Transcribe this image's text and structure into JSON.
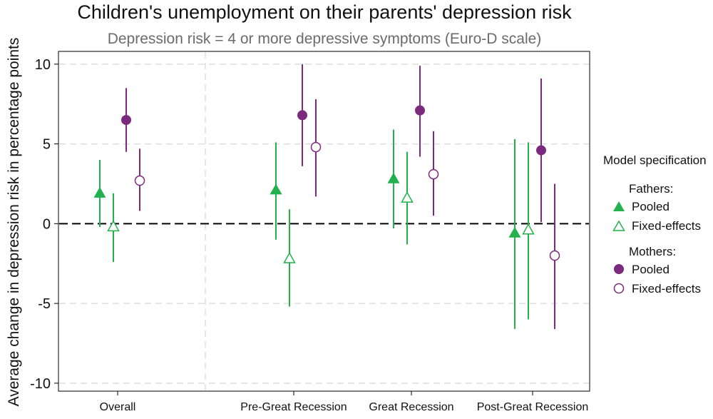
{
  "title": "Children's unemployment on their parents' depression risk",
  "subtitle": "Depression risk = 4 or more depressive symptoms (Euro-D scale)",
  "colors": {
    "fathers": "#22b14c",
    "mothers": "#7b2a7e",
    "reference_line": "#000000",
    "grid": "#dddddd"
  },
  "chart_data": {
    "type": "scatter",
    "title": "Children's unemployment on their parents' depression risk",
    "subtitle": "Depression risk = 4 or more depressive symptoms (Euro-D scale)",
    "xlabel": "",
    "ylabel": "Average change in depression risk in percentage points",
    "ylim": [
      -10.5,
      10.8
    ],
    "yticks": [
      10,
      5,
      0,
      -5,
      -10
    ],
    "ytick_labels": [
      "10",
      "5",
      "0",
      "-5",
      "-10"
    ],
    "categories": [
      "Overall",
      "Pre-Great Recession",
      "Great Recession",
      "Post-Great Recession"
    ],
    "grid": true,
    "reference_line_y": 0,
    "legend_position": "right",
    "legend": {
      "title": "Model specification",
      "groups": [
        {
          "label": "Fathers:",
          "items": [
            {
              "label": "Pooled",
              "marker": "filled-triangle"
            },
            {
              "label": "Fixed-effects",
              "marker": "hollow-triangle"
            }
          ]
        },
        {
          "label": "Mothers:",
          "items": [
            {
              "label": "Pooled",
              "marker": "filled-circle"
            },
            {
              "label": "Fixed-effects",
              "marker": "hollow-circle"
            }
          ]
        }
      ]
    },
    "series": [
      {
        "group": "Fathers",
        "model": "Pooled",
        "marker": "filled-triangle",
        "color": "#22b14c",
        "values": [
          1.9,
          2.1,
          2.8,
          -0.6
        ],
        "lower": [
          -0.2,
          -1.0,
          -0.3,
          -6.6
        ],
        "upper": [
          4.0,
          5.1,
          5.9,
          5.3
        ]
      },
      {
        "group": "Fathers",
        "model": "Fixed-effects",
        "marker": "hollow-triangle",
        "color": "#22b14c",
        "values": [
          -0.2,
          -2.2,
          1.6,
          -0.4
        ],
        "lower": [
          -2.4,
          -5.2,
          -1.3,
          -6.0
        ],
        "upper": [
          1.9,
          0.9,
          4.5,
          5.1
        ]
      },
      {
        "group": "Mothers",
        "model": "Pooled",
        "marker": "filled-circle",
        "color": "#7b2a7e",
        "values": [
          6.5,
          6.8,
          7.1,
          4.6
        ],
        "lower": [
          4.5,
          3.6,
          4.2,
          0.1
        ],
        "upper": [
          8.5,
          10.0,
          9.9,
          9.1
        ]
      },
      {
        "group": "Mothers",
        "model": "Fixed-effects",
        "marker": "hollow-circle",
        "color": "#7b2a7e",
        "values": [
          2.7,
          4.8,
          3.1,
          -2.0
        ],
        "lower": [
          0.8,
          1.7,
          0.5,
          -6.6
        ],
        "upper": [
          4.7,
          7.8,
          5.8,
          2.5
        ]
      }
    ]
  }
}
